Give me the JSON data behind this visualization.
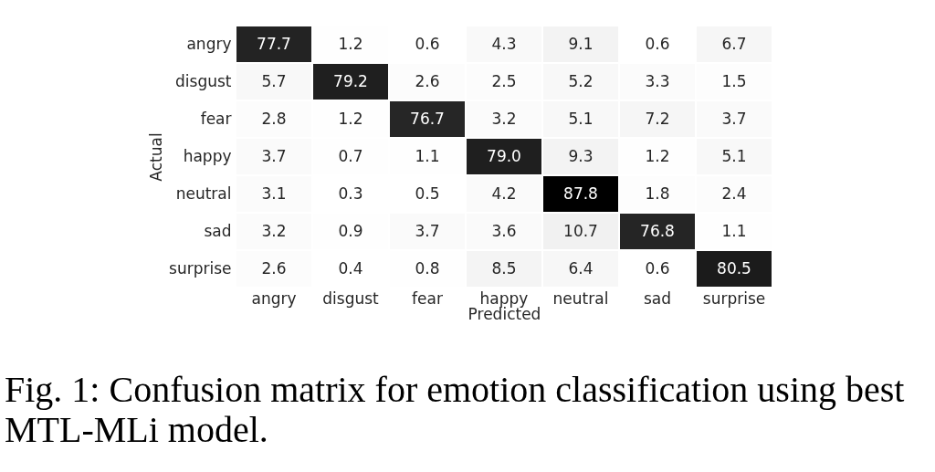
{
  "chart_data": {
    "type": "heatmap",
    "categories": [
      "angry",
      "disgust",
      "fear",
      "happy",
      "neutral",
      "sad",
      "surprise"
    ],
    "y_categories": [
      "angry",
      "disgust",
      "fear",
      "happy",
      "neutral",
      "sad",
      "surprise"
    ],
    "cells": [
      [
        77.7,
        1.2,
        0.6,
        4.3,
        9.1,
        0.6,
        6.7
      ],
      [
        5.7,
        79.2,
        2.6,
        2.5,
        5.2,
        3.3,
        1.5
      ],
      [
        2.8,
        1.2,
        76.7,
        3.2,
        5.1,
        7.2,
        3.7
      ],
      [
        3.7,
        0.7,
        1.1,
        79.0,
        9.3,
        1.2,
        5.1
      ],
      [
        3.1,
        0.3,
        0.5,
        4.2,
        87.8,
        1.8,
        2.4
      ],
      [
        3.2,
        0.9,
        3.7,
        3.6,
        10.7,
        76.8,
        1.1
      ],
      [
        2.6,
        0.4,
        0.8,
        8.5,
        6.4,
        0.6,
        80.5
      ]
    ],
    "cell_labels": [
      [
        "77.7",
        "1.2",
        "0.6",
        "4.3",
        "9.1",
        "0.6",
        "6.7"
      ],
      [
        "5.7",
        "79.2",
        "2.6",
        "2.5",
        "5.2",
        "3.3",
        "1.5"
      ],
      [
        "2.8",
        "1.2",
        "76.7",
        "3.2",
        "5.1",
        "7.2",
        "3.7"
      ],
      [
        "3.7",
        "0.7",
        "1.1",
        "79.0",
        "9.3",
        "1.2",
        "5.1"
      ],
      [
        "3.1",
        "0.3",
        "0.5",
        "4.2",
        "87.8",
        "1.8",
        "2.4"
      ],
      [
        "3.2",
        "0.9",
        "3.7",
        "3.6",
        "10.7",
        "76.8",
        "1.1"
      ],
      [
        "2.6",
        "0.4",
        "0.8",
        "8.5",
        "6.4",
        "0.6",
        "80.5"
      ]
    ],
    "xlabel": "Predicted",
    "ylabel": "Actual",
    "annotations": [
      "Fig. 1: Confusion matrix for emotion classification using best MTL-MLi model."
    ]
  }
}
